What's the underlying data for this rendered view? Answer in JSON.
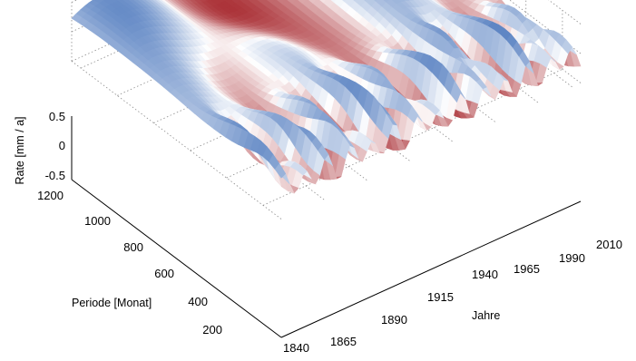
{
  "chart_data": {
    "type": "surface",
    "axes": {
      "z": {
        "label": "Rate [mm / a]",
        "ticks": [
          "0.5",
          "0",
          "-0.5"
        ],
        "range": [
          -0.5,
          0.5
        ]
      },
      "y": {
        "label": "Periode [Monat]",
        "ticks": [
          "1200",
          "1000",
          "800",
          "600",
          "400",
          "200"
        ],
        "range": [
          100,
          1250
        ]
      },
      "x": {
        "label": "Jahre",
        "ticks": [
          "1840",
          "1865",
          "1890",
          "1915",
          "1940",
          "1965",
          "1990",
          "2010"
        ],
        "range": [
          1840,
          2015
        ]
      }
    },
    "grid": true,
    "colormap": {
      "negative": "#a6262c",
      "zero": "#ffffff",
      "positive": "#5f86c4"
    },
    "surface_features": [
      {
        "description": "long-period band",
        "period": 1150,
        "years": [
          1840,
          1990
        ],
        "sign": "alternating"
      },
      {
        "description": "peaks",
        "period": 350,
        "years": [
          1850,
          1990
        ],
        "sign": "positive"
      },
      {
        "description": "troughs",
        "period": 250,
        "years": [
          1860,
          2000
        ],
        "sign": "negative"
      }
    ]
  }
}
